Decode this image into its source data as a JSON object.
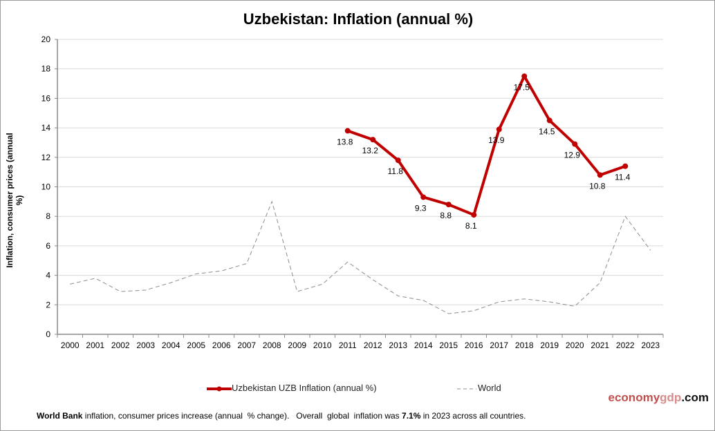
{
  "chart_data": {
    "type": "line",
    "title": "Uzbekistan: Inflation (annual %)",
    "ylabel": "Inflation, consumer prices (annual %)",
    "xlabel": "",
    "ylim": [
      0,
      20
    ],
    "yticks": [
      0,
      2,
      4,
      6,
      8,
      10,
      12,
      14,
      16,
      18,
      20
    ],
    "grid": true,
    "legend_placement": "bottom",
    "categories": [
      "2000",
      "2001",
      "2002",
      "2003",
      "2004",
      "2005",
      "2006",
      "2007",
      "2008",
      "2009",
      "2010",
      "2011",
      "2012",
      "2013",
      "2014",
      "2015",
      "2016",
      "2017",
      "2018",
      "2019",
      "2020",
      "2021",
      "2022",
      "2023"
    ],
    "series": [
      {
        "name": "Uzbekistan UZB Inflation (annual %)",
        "color": "#c00000",
        "style": "solid-markers",
        "labels": true,
        "values": [
          null,
          null,
          null,
          null,
          null,
          null,
          null,
          null,
          null,
          null,
          null,
          13.8,
          13.2,
          11.8,
          9.3,
          8.8,
          8.1,
          13.9,
          17.5,
          14.5,
          12.9,
          10.8,
          11.4,
          null
        ]
      },
      {
        "name": "World",
        "color": "#8c8c8c",
        "style": "dashed",
        "values": [
          3.4,
          3.8,
          2.9,
          3.0,
          3.5,
          4.1,
          4.3,
          4.8,
          9.0,
          2.9,
          3.4,
          4.9,
          3.7,
          2.6,
          2.3,
          1.4,
          1.6,
          2.2,
          2.4,
          2.2,
          1.9,
          3.5,
          8.0,
          5.7
        ]
      }
    ]
  },
  "brand": {
    "part1": "economy",
    "part2": "gdp",
    "part3": ".com"
  },
  "footer": {
    "b1": "World Bank",
    "t1": " inflation, consumer prices increase (annual  % change).   Overall  global  inflation was ",
    "b2": "7.1%",
    "t2": " in 2023 across all countries."
  }
}
